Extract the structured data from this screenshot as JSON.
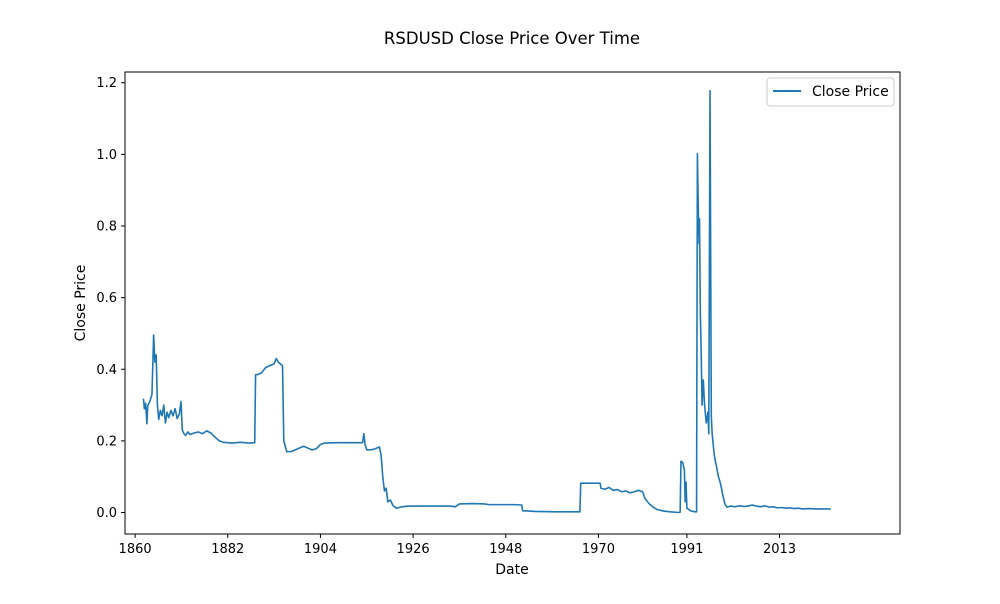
{
  "chart_data": {
    "type": "line",
    "title": "RSDUSD Close Price Over Time",
    "xlabel": "Date",
    "ylabel": "Close Price",
    "xlim": [
      1857.6,
      2041.6
    ],
    "ylim": [
      -0.06,
      1.23
    ],
    "x_ticks": [
      1860,
      1882,
      1904,
      1926,
      1948,
      1970,
      1991,
      2013
    ],
    "y_ticks": [
      0.0,
      0.2,
      0.4,
      0.6,
      0.8,
      1.0,
      1.2
    ],
    "y_tick_labels": [
      "0.0",
      "0.2",
      "0.4",
      "0.6",
      "0.8",
      "1.0",
      "1.2"
    ],
    "grid": false,
    "legend_position": "top-right",
    "series": [
      {
        "name": "Close Price",
        "color": "#1f77b4",
        "points": [
          [
            1862.0,
            0.316
          ],
          [
            1862.2,
            0.29
          ],
          [
            1862.5,
            0.305
          ],
          [
            1862.8,
            0.248
          ],
          [
            1863.0,
            0.298
          ],
          [
            1863.5,
            0.31
          ],
          [
            1864.0,
            0.33
          ],
          [
            1864.4,
            0.496
          ],
          [
            1864.7,
            0.42
          ],
          [
            1865.0,
            0.44
          ],
          [
            1865.3,
            0.3
          ],
          [
            1865.6,
            0.26
          ],
          [
            1866.0,
            0.285
          ],
          [
            1866.4,
            0.27
          ],
          [
            1866.8,
            0.3
          ],
          [
            1867.2,
            0.25
          ],
          [
            1867.6,
            0.28
          ],
          [
            1868.0,
            0.265
          ],
          [
            1868.5,
            0.285
          ],
          [
            1869.0,
            0.27
          ],
          [
            1869.5,
            0.29
          ],
          [
            1870.0,
            0.262
          ],
          [
            1870.5,
            0.275
          ],
          [
            1870.9,
            0.31
          ],
          [
            1871.2,
            0.23
          ],
          [
            1871.6,
            0.22
          ],
          [
            1872.0,
            0.215
          ],
          [
            1872.5,
            0.225
          ],
          [
            1873.0,
            0.218
          ],
          [
            1874.0,
            0.222
          ],
          [
            1875.0,
            0.225
          ],
          [
            1876.0,
            0.22
          ],
          [
            1877.0,
            0.228
          ],
          [
            1878.0,
            0.222
          ],
          [
            1879.0,
            0.21
          ],
          [
            1880.0,
            0.2
          ],
          [
            1881.0,
            0.196
          ],
          [
            1883.0,
            0.194
          ],
          [
            1885.0,
            0.196
          ],
          [
            1887.0,
            0.194
          ],
          [
            1888.4,
            0.195
          ],
          [
            1888.6,
            0.385
          ],
          [
            1889.0,
            0.385
          ],
          [
            1890.0,
            0.39
          ],
          [
            1891.0,
            0.405
          ],
          [
            1892.0,
            0.41
          ],
          [
            1893.0,
            0.415
          ],
          [
            1893.5,
            0.43
          ],
          [
            1894.0,
            0.42
          ],
          [
            1895.0,
            0.41
          ],
          [
            1895.3,
            0.2
          ],
          [
            1896.0,
            0.17
          ],
          [
            1897.0,
            0.17
          ],
          [
            1898.0,
            0.175
          ],
          [
            1899.0,
            0.18
          ],
          [
            1900.0,
            0.185
          ],
          [
            1901.0,
            0.18
          ],
          [
            1902.0,
            0.175
          ],
          [
            1903.0,
            0.178
          ],
          [
            1904.0,
            0.19
          ],
          [
            1905.0,
            0.194
          ],
          [
            1908.0,
            0.195
          ],
          [
            1912.0,
            0.195
          ],
          [
            1914.0,
            0.195
          ],
          [
            1914.3,
            0.22
          ],
          [
            1914.6,
            0.19
          ],
          [
            1915.0,
            0.175
          ],
          [
            1916.0,
            0.175
          ],
          [
            1917.0,
            0.178
          ],
          [
            1918.0,
            0.183
          ],
          [
            1918.4,
            0.16
          ],
          [
            1918.8,
            0.1
          ],
          [
            1919.2,
            0.06
          ],
          [
            1919.6,
            0.068
          ],
          [
            1920.0,
            0.03
          ],
          [
            1920.6,
            0.035
          ],
          [
            1921.2,
            0.02
          ],
          [
            1922.0,
            0.012
          ],
          [
            1923.0,
            0.015
          ],
          [
            1924.0,
            0.017
          ],
          [
            1925.0,
            0.018
          ],
          [
            1930.0,
            0.018
          ],
          [
            1935.0,
            0.018
          ],
          [
            1936.0,
            0.016
          ],
          [
            1937.0,
            0.024
          ],
          [
            1940.0,
            0.025
          ],
          [
            1943.0,
            0.024
          ],
          [
            1944.0,
            0.022
          ],
          [
            1950.0,
            0.022
          ],
          [
            1951.8,
            0.021
          ],
          [
            1952.0,
            0.005
          ],
          [
            1955.0,
            0.003
          ],
          [
            1960.0,
            0.002
          ],
          [
            1965.0,
            0.002
          ],
          [
            1965.6,
            0.002
          ],
          [
            1965.8,
            0.082
          ],
          [
            1968.0,
            0.082
          ],
          [
            1970.0,
            0.082
          ],
          [
            1970.4,
            0.082
          ],
          [
            1970.6,
            0.068
          ],
          [
            1971.5,
            0.065
          ],
          [
            1972.5,
            0.07
          ],
          [
            1973.5,
            0.062
          ],
          [
            1974.5,
            0.064
          ],
          [
            1975.5,
            0.058
          ],
          [
            1976.5,
            0.06
          ],
          [
            1977.5,
            0.055
          ],
          [
            1978.5,
            0.058
          ],
          [
            1979.5,
            0.062
          ],
          [
            1980.5,
            0.058
          ],
          [
            1981.0,
            0.04
          ],
          [
            1982.0,
            0.025
          ],
          [
            1983.0,
            0.015
          ],
          [
            1984.0,
            0.008
          ],
          [
            1985.5,
            0.004
          ],
          [
            1987.0,
            0.002
          ],
          [
            1989.0,
            0.0
          ],
          [
            1989.4,
            0.001
          ],
          [
            1989.6,
            0.143
          ],
          [
            1990.0,
            0.14
          ],
          [
            1990.4,
            0.12
          ],
          [
            1990.6,
            0.03
          ],
          [
            1990.8,
            0.085
          ],
          [
            1991.0,
            0.012
          ],
          [
            1992.0,
            0.004
          ],
          [
            1993.0,
            0.002
          ],
          [
            1993.3,
            0.002
          ],
          [
            1993.5,
            1.002
          ],
          [
            1993.7,
            0.85
          ],
          [
            1993.9,
            0.75
          ],
          [
            1994.0,
            0.82
          ],
          [
            1994.2,
            0.55
          ],
          [
            1994.4,
            0.45
          ],
          [
            1994.6,
            0.3
          ],
          [
            1994.9,
            0.37
          ],
          [
            1995.2,
            0.3
          ],
          [
            1995.6,
            0.25
          ],
          [
            1996.0,
            0.28
          ],
          [
            1996.2,
            0.22
          ],
          [
            1996.5,
            1.178
          ],
          [
            1996.8,
            0.27
          ],
          [
            1997.0,
            0.22
          ],
          [
            1997.5,
            0.16
          ],
          [
            1998.0,
            0.13
          ],
          [
            1998.5,
            0.1
          ],
          [
            1999.0,
            0.08
          ],
          [
            1999.5,
            0.05
          ],
          [
            2000.0,
            0.025
          ],
          [
            2000.5,
            0.015
          ],
          [
            2001.5,
            0.018
          ],
          [
            2002.5,
            0.016
          ],
          [
            2003.5,
            0.019
          ],
          [
            2004.5,
            0.017
          ],
          [
            2005.5,
            0.018
          ],
          [
            2006.5,
            0.021
          ],
          [
            2007.5,
            0.018
          ],
          [
            2008.5,
            0.016
          ],
          [
            2009.5,
            0.019
          ],
          [
            2010.5,
            0.015
          ],
          [
            2011.5,
            0.016
          ],
          [
            2012.5,
            0.013
          ],
          [
            2013.5,
            0.014
          ],
          [
            2014.5,
            0.012
          ],
          [
            2015.5,
            0.013
          ],
          [
            2016.5,
            0.011
          ],
          [
            2017.5,
            0.012
          ],
          [
            2018.5,
            0.01
          ],
          [
            2020.0,
            0.011
          ],
          [
            2021.5,
            0.01
          ],
          [
            2023.0,
            0.01
          ],
          [
            2025.0,
            0.01
          ]
        ]
      }
    ]
  }
}
